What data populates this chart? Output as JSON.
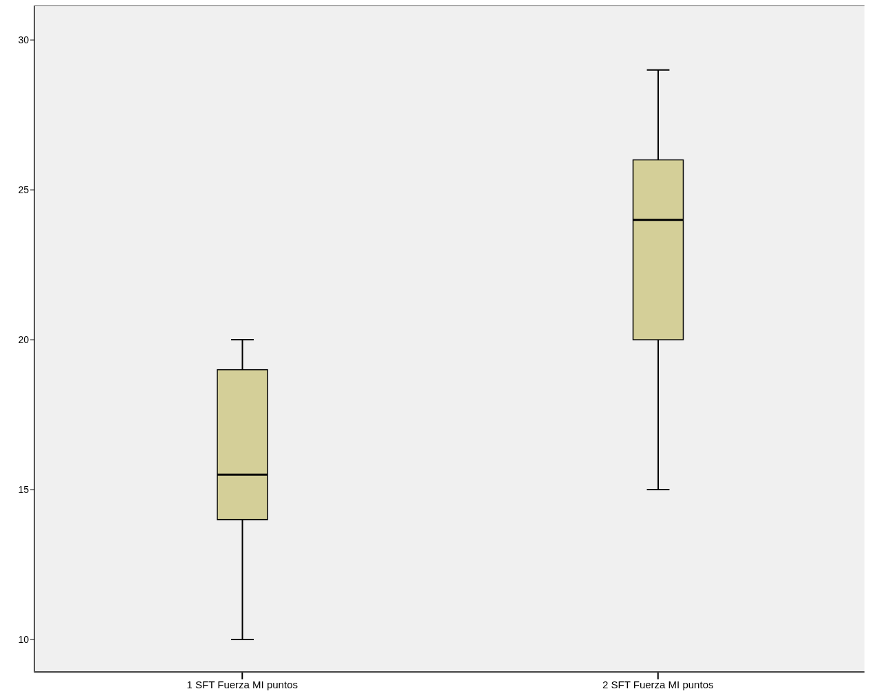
{
  "chart_data": {
    "type": "box",
    "categories": [
      "1 SFT Fuerza MI puntos",
      "2 SFT Fuerza MI puntos"
    ],
    "boxes": [
      {
        "low": 10,
        "q1": 14,
        "median": 15.5,
        "q3": 19,
        "high": 20
      },
      {
        "low": 15,
        "q1": 20,
        "median": 24,
        "q3": 26,
        "high": 29
      }
    ],
    "color": "#d4cf98",
    "ylim": [
      8.9,
      31.15
    ],
    "yticks": [
      10,
      15,
      20,
      25,
      30
    ],
    "grid": false
  }
}
